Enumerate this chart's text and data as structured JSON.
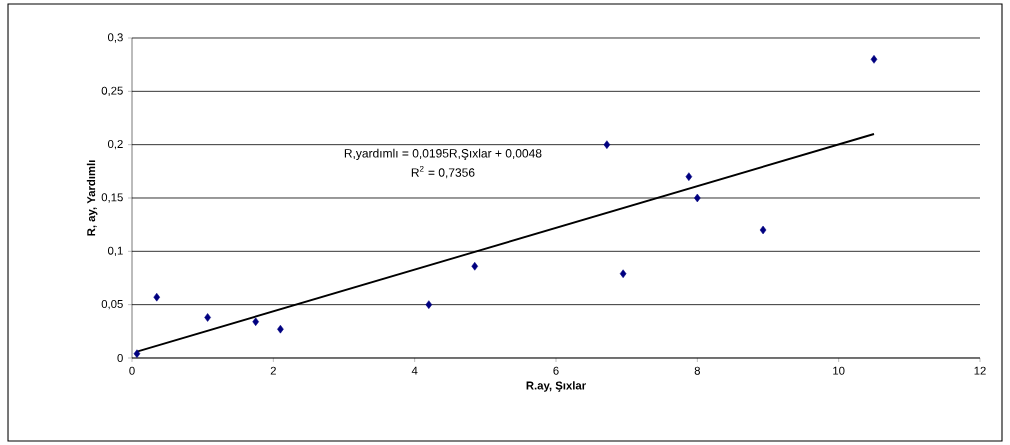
{
  "chart_data": {
    "type": "scatter",
    "xlabel": "R.ay, Şıxlar",
    "ylabel": "R, ay, Yardımlı",
    "x": [
      0.07,
      0.35,
      1.07,
      1.75,
      2.1,
      4.2,
      4.85,
      6.72,
      6.95,
      7.88,
      8.0,
      8.93,
      10.5
    ],
    "series": [
      {
        "color": "#000080",
        "values": [
          0.004,
          0.057,
          0.038,
          0.034,
          0.027,
          0.05,
          0.086,
          0.2,
          0.079,
          0.17,
          0.15,
          0.12,
          0.28
        ]
      },
      {
        "type": "line",
        "color": "#000000",
        "x": [
          0.07,
          10.5
        ],
        "values": [
          0.006,
          0.21
        ],
        "marker": "none"
      }
    ],
    "marker": "diamond",
    "grid": "y",
    "xlim": [
      0,
      12
    ],
    "xticks": [
      0,
      2,
      4,
      6,
      8,
      10,
      12
    ],
    "ylim": [
      0,
      0.3
    ],
    "yticks": [
      0,
      {
        "value": 0.05,
        "label": "0,05"
      },
      {
        "value": 0.1,
        "label": "0,1"
      },
      {
        "value": 0.15,
        "label": "0,15"
      },
      {
        "value": 0.2,
        "label": "0,2"
      },
      {
        "value": 0.25,
        "label": "0,25"
      },
      {
        "value": 0.3,
        "label": "0,3"
      }
    ],
    "annotations": [
      "R,yardımlı = 0,0195R,Şıxlar + 0,0048",
      "R$^{2}$ = 0,7356"
    ]
  }
}
